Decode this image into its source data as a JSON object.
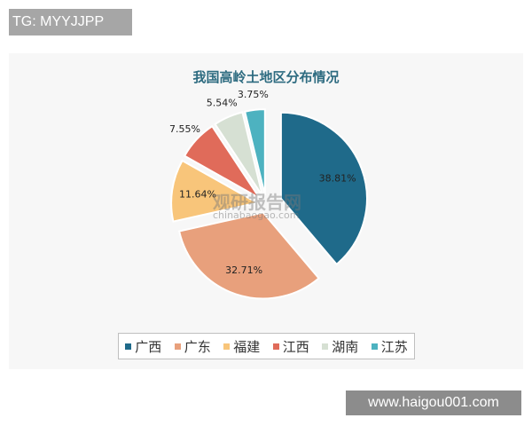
{
  "tag": "TG: MYYJJPP",
  "site": "www.haigou001.com",
  "watermark": {
    "cn": "观研报告网",
    "en": "chinabaogao.com"
  },
  "chart_data": {
    "type": "pie",
    "title": "我国高岭土地区分布情况",
    "legend_position": "bottom",
    "categories": [
      "广西",
      "广东",
      "福建",
      "江西",
      "湖南",
      "江苏"
    ],
    "values": [
      38.81,
      32.71,
      11.64,
      7.55,
      5.54,
      3.75
    ],
    "labels": [
      "38.81%",
      "32.71%",
      "11.64%",
      "7.55%",
      "5.54%",
      "3.75%"
    ],
    "colors": [
      "#1f6a8a",
      "#e8a07c",
      "#f8c57a",
      "#e06b5a",
      "#d6e0d3",
      "#4db2c0"
    ],
    "start_angle": "12 o'clock",
    "direction": "clockwise",
    "exploded": true
  }
}
